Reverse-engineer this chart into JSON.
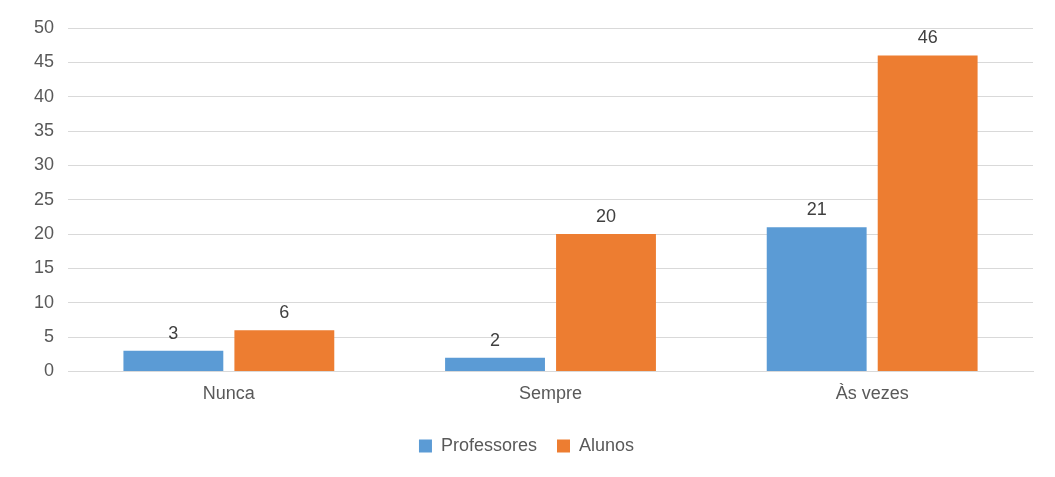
{
  "chart_data": {
    "type": "bar",
    "categories": [
      "Nunca",
      "Sempre",
      "Às vezes"
    ],
    "series": [
      {
        "name": "Professores",
        "color": "#5b9bd5",
        "values": [
          3,
          2,
          21
        ]
      },
      {
        "name": "Alunos",
        "color": "#ed7d31",
        "values": [
          6,
          20,
          46
        ]
      }
    ],
    "ylim": [
      0,
      50
    ],
    "yticks": [
      0,
      5,
      10,
      15,
      20,
      25,
      30,
      35,
      40,
      45,
      50
    ],
    "grid": "y",
    "legend": "bottom",
    "data_labels": true
  }
}
